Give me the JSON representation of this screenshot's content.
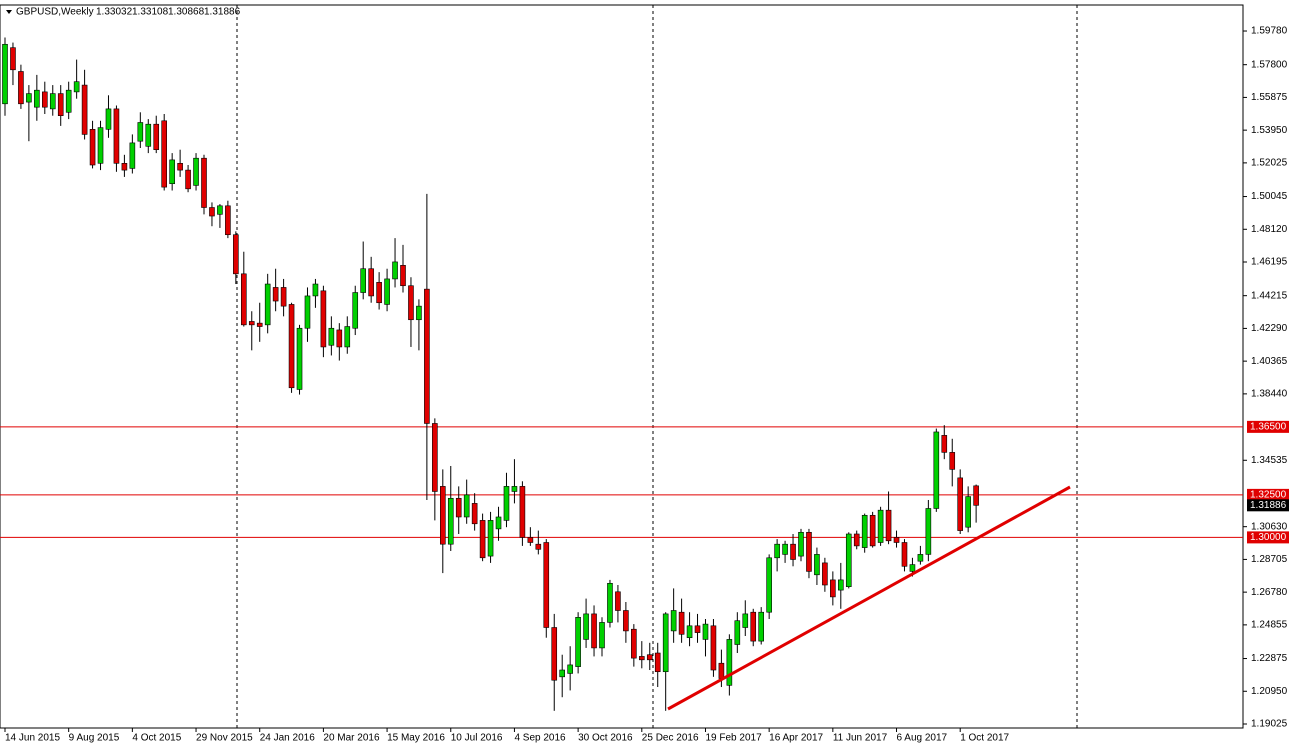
{
  "chart_data": {
    "type": "candlestick",
    "symbol": "GBPUSD,Weekly",
    "up_color": "#00d000",
    "down_color": "#e00000",
    "level_color": "#e00000",
    "ylim": [
      1.1879,
      1.6131
    ],
    "yticks": [
      {
        "value": 1.5978,
        "label": "1.59780"
      },
      {
        "value": 1.578,
        "label": "1.57800"
      },
      1.55875,
      {
        "value": 1.5395,
        "label": "1.53950"
      },
      1.52025,
      1.50045,
      {
        "value": 1.4812,
        "label": "1.48120"
      },
      1.46195,
      1.44215,
      {
        "value": 1.4229,
        "label": "1.42290"
      },
      1.40365,
      {
        "value": 1.3844,
        "label": "1.38440"
      },
      1.34535,
      {
        "value": 1.3063,
        "label": "1.30630"
      },
      1.28705,
      {
        "value": 1.2678,
        "label": "1.26780"
      },
      1.24855,
      1.22875,
      {
        "value": 1.2095,
        "label": "1.20950"
      },
      1.19025
    ],
    "levels": [
      {
        "value": 1.365,
        "label": "1.36500"
      },
      {
        "value": 1.325,
        "label": "1.32500"
      },
      {
        "value": 1.3,
        "label": "1.30000"
      }
    ],
    "categories": [
      "14 Jun 2015",
      null,
      null,
      null,
      null,
      null,
      null,
      null,
      "9 Aug 2015",
      null,
      null,
      null,
      null,
      null,
      null,
      null,
      "4 Oct 2015",
      null,
      null,
      null,
      null,
      null,
      null,
      null,
      "29 Nov 2015",
      null,
      null,
      null,
      null,
      null,
      null,
      null,
      "24 Jan 2016",
      null,
      null,
      null,
      null,
      null,
      null,
      null,
      "20 Mar 2016",
      null,
      null,
      null,
      null,
      null,
      null,
      null,
      "15 May 2016",
      null,
      null,
      null,
      null,
      null,
      null,
      null,
      "10 Jul 2016",
      null,
      null,
      null,
      null,
      null,
      null,
      null,
      "4 Sep 2016",
      null,
      null,
      null,
      null,
      null,
      null,
      null,
      "30 Oct 2016",
      null,
      null,
      null,
      null,
      null,
      null,
      null,
      "25 Dec 2016",
      null,
      null,
      null,
      null,
      null,
      null,
      null,
      "19 Feb 2017",
      null,
      null,
      null,
      null,
      null,
      null,
      null,
      "16 Apr 2017",
      null,
      null,
      null,
      null,
      null,
      null,
      null,
      "11 Jun 2017",
      null,
      null,
      null,
      null,
      null,
      null,
      null,
      "6 Aug 2017",
      null,
      null,
      null,
      null,
      null,
      null,
      null,
      "1 Oct 2017",
      null,
      null
    ],
    "ohlc": [
      [
        1.555,
        1.594,
        1.548,
        1.59
      ],
      [
        1.588,
        1.591,
        1.566,
        1.575
      ],
      [
        1.574,
        1.578,
        1.552,
        1.555
      ],
      [
        1.556,
        1.566,
        1.533,
        1.561
      ],
      [
        1.553,
        1.572,
        1.545,
        1.563
      ],
      [
        1.562,
        1.568,
        1.549,
        1.553
      ],
      [
        1.552,
        1.566,
        1.548,
        1.561
      ],
      [
        1.561,
        1.566,
        1.542,
        1.548
      ],
      [
        1.55,
        1.568,
        1.546,
        1.563
      ],
      [
        1.562,
        1.581,
        1.558,
        1.568
      ],
      [
        1.566,
        1.575,
        1.534,
        1.537
      ],
      [
        1.54,
        1.545,
        1.517,
        1.519
      ],
      [
        1.52,
        1.545,
        1.516,
        1.541
      ],
      [
        1.54,
        1.56,
        1.535,
        1.552
      ],
      [
        1.552,
        1.554,
        1.515,
        1.52
      ],
      [
        1.52,
        1.525,
        1.512,
        1.516
      ],
      [
        1.517,
        1.537,
        1.514,
        1.532
      ],
      [
        1.533,
        1.55,
        1.529,
        1.544
      ],
      [
        1.53,
        1.546,
        1.526,
        1.543
      ],
      [
        1.543,
        1.548,
        1.526,
        1.528
      ],
      [
        1.545,
        1.549,
        1.504,
        1.506
      ],
      [
        1.508,
        1.526,
        1.504,
        1.522
      ],
      [
        1.52,
        1.528,
        1.512,
        1.516
      ],
      [
        1.516,
        1.519,
        1.503,
        1.505
      ],
      [
        1.507,
        1.526,
        1.504,
        1.523
      ],
      [
        1.523,
        1.525,
        1.49,
        1.494
      ],
      [
        1.494,
        1.497,
        1.483,
        1.489
      ],
      [
        1.49,
        1.496,
        1.482,
        1.495
      ],
      [
        1.495,
        1.498,
        1.476,
        1.478
      ],
      [
        1.478,
        1.48,
        1.449,
        1.455
      ],
      [
        1.455,
        1.468,
        1.424,
        1.425
      ],
      [
        1.427,
        1.433,
        1.41,
        1.425
      ],
      [
        1.426,
        1.438,
        1.415,
        1.424
      ],
      [
        1.425,
        1.455,
        1.42,
        1.449
      ],
      [
        1.447,
        1.458,
        1.433,
        1.439
      ],
      [
        1.447,
        1.452,
        1.43,
        1.436
      ],
      [
        1.437,
        1.438,
        1.385,
        1.388
      ],
      [
        1.387,
        1.425,
        1.384,
        1.423
      ],
      [
        1.423,
        1.447,
        1.415,
        1.442
      ],
      [
        1.442,
        1.452,
        1.435,
        1.449
      ],
      [
        1.445,
        1.448,
        1.406,
        1.412
      ],
      [
        1.413,
        1.43,
        1.407,
        1.423
      ],
      [
        1.422,
        1.426,
        1.404,
        1.412
      ],
      [
        1.412,
        1.43,
        1.408,
        1.424
      ],
      [
        1.423,
        1.448,
        1.419,
        1.444
      ],
      [
        1.444,
        1.474,
        1.44,
        1.458
      ],
      [
        1.458,
        1.465,
        1.438,
        1.442
      ],
      [
        1.45,
        1.456,
        1.434,
        1.438
      ],
      [
        1.437,
        1.458,
        1.433,
        1.452
      ],
      [
        1.452,
        1.476,
        1.447,
        1.462
      ],
      [
        1.46,
        1.472,
        1.444,
        1.448
      ],
      [
        1.448,
        1.453,
        1.412,
        1.428
      ],
      [
        1.428,
        1.44,
        1.41,
        1.436
      ],
      [
        1.446,
        1.502,
        1.322,
        1.367
      ],
      [
        1.367,
        1.37,
        1.31,
        1.327
      ],
      [
        1.33,
        1.34,
        1.279,
        1.296
      ],
      [
        1.296,
        1.342,
        1.292,
        1.323
      ],
      [
        1.323,
        1.33,
        1.302,
        1.312
      ],
      [
        1.312,
        1.334,
        1.308,
        1.325
      ],
      [
        1.32,
        1.326,
        1.304,
        1.308
      ],
      [
        1.31,
        1.314,
        1.286,
        1.288
      ],
      [
        1.289,
        1.315,
        1.285,
        1.31
      ],
      [
        1.305,
        1.318,
        1.298,
        1.312
      ],
      [
        1.31,
        1.338,
        1.306,
        1.33
      ],
      [
        1.327,
        1.346,
        1.32,
        1.33
      ],
      [
        1.33,
        1.333,
        1.295,
        1.3
      ],
      [
        1.3,
        1.306,
        1.295,
        1.297
      ],
      [
        1.296,
        1.304,
        1.29,
        1.293
      ],
      [
        1.297,
        1.299,
        1.241,
        1.247
      ],
      [
        1.247,
        1.255,
        1.198,
        1.216
      ],
      [
        1.218,
        1.231,
        1.206,
        1.222
      ],
      [
        1.22,
        1.236,
        1.21,
        1.225
      ],
      [
        1.224,
        1.256,
        1.22,
        1.253
      ],
      [
        1.24,
        1.264,
        1.235,
        1.255
      ],
      [
        1.255,
        1.26,
        1.23,
        1.235
      ],
      [
        1.235,
        1.253,
        1.23,
        1.25
      ],
      [
        1.25,
        1.275,
        1.247,
        1.273
      ],
      [
        1.268,
        1.272,
        1.25,
        1.257
      ],
      [
        1.257,
        1.262,
        1.238,
        1.245
      ],
      [
        1.246,
        1.249,
        1.224,
        1.229
      ],
      [
        1.23,
        1.239,
        1.223,
        1.228
      ],
      [
        1.231,
        1.238,
        1.222,
        1.228
      ],
      [
        1.232,
        1.238,
        1.212,
        1.221
      ],
      [
        1.221,
        1.256,
        1.198,
        1.255
      ],
      [
        1.245,
        1.27,
        1.238,
        1.257
      ],
      [
        1.256,
        1.264,
        1.238,
        1.243
      ],
      [
        1.241,
        1.256,
        1.236,
        1.248
      ],
      [
        1.248,
        1.255,
        1.238,
        1.244
      ],
      [
        1.24,
        1.252,
        1.23,
        1.249
      ],
      [
        1.248,
        1.252,
        1.218,
        1.222
      ],
      [
        1.226,
        1.234,
        1.212,
        1.217
      ],
      [
        1.213,
        1.243,
        1.207,
        1.24
      ],
      [
        1.237,
        1.256,
        1.232,
        1.251
      ],
      [
        1.247,
        1.263,
        1.242,
        1.255
      ],
      [
        1.256,
        1.258,
        1.236,
        1.239
      ],
      [
        1.239,
        1.259,
        1.237,
        1.256
      ],
      [
        1.256,
        1.29,
        1.252,
        1.288
      ],
      [
        1.288,
        1.299,
        1.28,
        1.296
      ],
      [
        1.29,
        1.298,
        1.285,
        1.296
      ],
      [
        1.296,
        1.302,
        1.283,
        1.287
      ],
      [
        1.289,
        1.305,
        1.286,
        1.303
      ],
      [
        1.303,
        1.305,
        1.276,
        1.28
      ],
      [
        1.278,
        1.294,
        1.272,
        1.29
      ],
      [
        1.285,
        1.288,
        1.268,
        1.272
      ],
      [
        1.275,
        1.28,
        1.26,
        1.265
      ],
      [
        1.269,
        1.285,
        1.258,
        1.275
      ],
      [
        1.271,
        1.303,
        1.27,
        1.302
      ],
      [
        1.302,
        1.304,
        1.293,
        1.295
      ],
      [
        1.294,
        1.314,
        1.291,
        1.313
      ],
      [
        1.313,
        1.315,
        1.294,
        1.295
      ],
      [
        1.297,
        1.318,
        1.295,
        1.316
      ],
      [
        1.316,
        1.327,
        1.296,
        1.298
      ],
      [
        1.3,
        1.304,
        1.294,
        1.297
      ],
      [
        1.297,
        1.299,
        1.28,
        1.283
      ],
      [
        1.28,
        1.288,
        1.277,
        1.284
      ],
      [
        1.286,
        1.295,
        1.284,
        1.29
      ],
      [
        1.29,
        1.322,
        1.286,
        1.317
      ],
      [
        1.317,
        1.364,
        1.315,
        1.362
      ],
      [
        1.36,
        1.366,
        1.346,
        1.35
      ],
      [
        1.35,
        1.358,
        1.33,
        1.34
      ],
      [
        1.335,
        1.34,
        1.302,
        1.304
      ],
      [
        1.306,
        1.33,
        1.303,
        1.324
      ],
      [
        1.33032,
        1.33108,
        1.30868,
        1.31886
      ]
    ]
  }
}
